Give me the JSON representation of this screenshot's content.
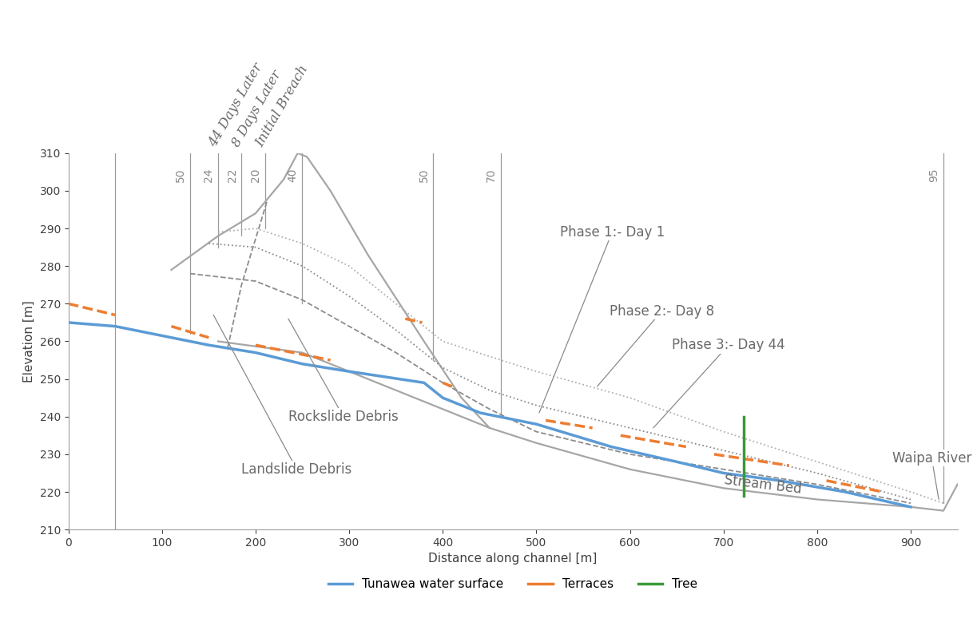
{
  "chart_data": {
    "type": "line",
    "x_label": "Distance along channel [m]",
    "y_label": "Elevation [m]",
    "xlim": [
      0,
      950
    ],
    "ylim": [
      210,
      310
    ],
    "xticks": [
      0,
      100,
      200,
      300,
      400,
      500,
      600,
      700,
      800,
      900
    ],
    "yticks": [
      210,
      220,
      230,
      240,
      250,
      260,
      270,
      280,
      290,
      300,
      310
    ],
    "grid": false,
    "legend": "upper center",
    "series": [
      {
        "name": "Tunawea water surface",
        "color": "#5b9bd5",
        "line_style": "solid",
        "x": [
          0,
          50,
          110,
          150,
          200,
          250,
          300,
          380,
          390,
          400,
          440,
          500,
          580,
          650,
          700,
          760,
          830,
          900
        ],
        "values": [
          265,
          264,
          261,
          259,
          257,
          254,
          252,
          249,
          247,
          245,
          241,
          238,
          232,
          228,
          225,
          223,
          220,
          216
        ]
      },
      {
        "name": "Terraces",
        "color": "#ed7d31",
        "line_style": "dashed",
        "x": [
          0,
          50,
          null,
          110,
          150,
          null,
          200,
          280,
          null,
          360,
          378,
          null,
          400,
          410,
          null,
          510,
          560,
          null,
          590,
          660,
          null,
          690,
          770,
          null,
          810,
          870
        ],
        "values": [
          270,
          267,
          null,
          264,
          261,
          null,
          259,
          255,
          null,
          266,
          265,
          null,
          249,
          248,
          null,
          239,
          237,
          null,
          235,
          232,
          null,
          230,
          227,
          null,
          223,
          220
        ]
      },
      {
        "name": "Tree",
        "color": "#3a9a3a",
        "line_style": "solid",
        "x": [
          722,
          722
        ],
        "values": [
          219,
          240
        ]
      }
    ],
    "profiles": [
      {
        "label": "Stream Bed",
        "color": "#a6a6a6",
        "line_style": "solid",
        "x": [
          160,
          250,
          300,
          350,
          400,
          450,
          500,
          600,
          700,
          800,
          900,
          935,
          950
        ],
        "values": [
          260,
          257,
          252,
          247,
          242,
          237,
          233,
          226,
          221,
          218,
          216,
          215,
          222
        ]
      },
      {
        "color": "#a6a6a6",
        "line_style": "solid",
        "x": [
          110,
          160,
          200,
          230,
          245,
          255,
          280,
          320,
          380,
          420,
          450
        ],
        "values": [
          279,
          288,
          294,
          303,
          310,
          309,
          300,
          283,
          260,
          245,
          237
        ]
      },
      {
        "label": "Phase 1:- Day 1",
        "color": "#b0b0b0",
        "line_style": "dotted",
        "x": [
          160,
          200,
          250,
          300,
          350,
          400,
          500,
          600,
          700,
          800,
          900,
          935
        ],
        "values": [
          289,
          290,
          286,
          280,
          270,
          260,
          252,
          245,
          236,
          228,
          220,
          217
        ]
      },
      {
        "label": "Phase 2:- Day 8",
        "color": "#8c8c8c",
        "line_style": "dotted",
        "x": [
          150,
          200,
          250,
          300,
          350,
          400,
          450,
          500,
          600,
          700,
          800,
          900
        ],
        "values": [
          286,
          285,
          280,
          272,
          263,
          253,
          247,
          243,
          237,
          231,
          225,
          218
        ]
      },
      {
        "label": "Phase 3:- Day 44",
        "color": "#8c8c8c",
        "line_style": "dashed",
        "x": [
          130,
          200,
          250,
          300,
          350,
          400,
          450,
          500,
          600,
          700,
          800,
          900
        ],
        "values": [
          278,
          276,
          271,
          264,
          257,
          249,
          242,
          236,
          230,
          226,
          222,
          217
        ]
      },
      {
        "color": "#8c8c8c",
        "line_style": "dashed",
        "x": [
          212,
          185,
          170
        ],
        "values": [
          297,
          275,
          258
        ]
      }
    ],
    "sections": [
      {
        "x": 50,
        "bottom": 210
      },
      {
        "x": 130,
        "bottom": 262,
        "value": 50
      },
      {
        "x": 160,
        "bottom": 285,
        "value": 24
      },
      {
        "x": 185,
        "bottom": 288,
        "value": 22
      },
      {
        "x": 210,
        "bottom": 290,
        "value": 20
      },
      {
        "x": 250,
        "bottom": 270,
        "value": 40
      },
      {
        "x": 390,
        "bottom": 255,
        "value": 50
      },
      {
        "x": 462,
        "bottom": 240,
        "value": 70
      },
      {
        "x": 935,
        "bottom": 217,
        "value": 95
      }
    ],
    "top_labels": [
      "44 Days Later",
      "8 Days Later",
      "Initial Breach"
    ],
    "annotations": [
      "Phase 1:- Day 1",
      "Phase 2:- Day 8",
      "Phase 3:- Day 44",
      "Rockslide Debris",
      "Landslide Debris",
      "Stream Bed",
      "Waipa River"
    ]
  }
}
